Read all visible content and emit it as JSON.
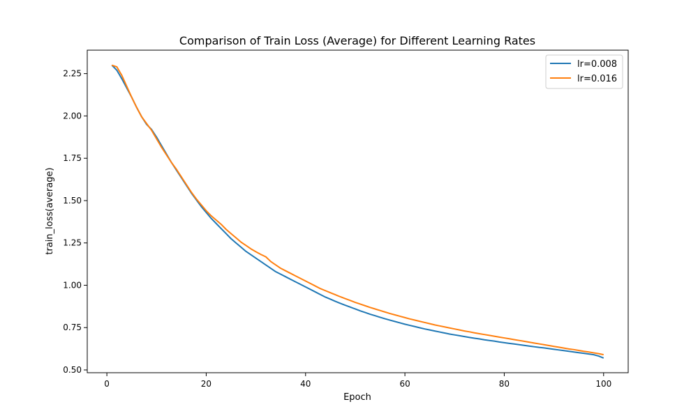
{
  "chart_data": {
    "type": "line",
    "title": "Comparison of Train Loss (Average) for Different Learning Rates",
    "xlabel": "Epoch",
    "ylabel": "train_loss(average)",
    "xlim": [
      -3.95,
      104.95
    ],
    "ylim": [
      0.4835,
      2.3885
    ],
    "xticks": [
      0,
      20,
      40,
      60,
      80,
      100
    ],
    "yticks": [
      0.5,
      0.75,
      1.0,
      1.25,
      1.5,
      1.75,
      2.0,
      2.25
    ],
    "xtick_labels": [
      "0",
      "20",
      "40",
      "60",
      "80",
      "100"
    ],
    "ytick_labels": [
      "0.50",
      "0.75",
      "1.00",
      "1.25",
      "1.50",
      "1.75",
      "2.00",
      "2.25"
    ],
    "grid": false,
    "legend_position": "top-right",
    "x": [
      1,
      2,
      3,
      4,
      5,
      6,
      7,
      8,
      9,
      10,
      11,
      12,
      13,
      14,
      15,
      16,
      17,
      18,
      19,
      20,
      21,
      22,
      23,
      24,
      25,
      26,
      27,
      28,
      29,
      30,
      31,
      32,
      33,
      34,
      35,
      36,
      37,
      38,
      39,
      40,
      41,
      42,
      43,
      44,
      45,
      46,
      47,
      48,
      49,
      50,
      51,
      52,
      53,
      54,
      55,
      56,
      57,
      58,
      59,
      60,
      61,
      62,
      63,
      64,
      65,
      66,
      67,
      68,
      69,
      70,
      71,
      72,
      73,
      74,
      75,
      76,
      77,
      78,
      79,
      80,
      81,
      82,
      83,
      84,
      85,
      86,
      87,
      88,
      89,
      90,
      91,
      92,
      93,
      94,
      95,
      96,
      97,
      98,
      99,
      100
    ],
    "series": [
      {
        "name": "lr=0.008",
        "color": "#1f77b4",
        "values": [
          2.3,
          2.27,
          2.22,
          2.165,
          2.11,
          2.05,
          1.995,
          1.95,
          1.92,
          1.875,
          1.825,
          1.775,
          1.725,
          1.68,
          1.635,
          1.59,
          1.545,
          1.505,
          1.465,
          1.43,
          1.395,
          1.365,
          1.335,
          1.305,
          1.275,
          1.25,
          1.225,
          1.2,
          1.18,
          1.16,
          1.14,
          1.12,
          1.1,
          1.08,
          1.065,
          1.05,
          1.035,
          1.02,
          1.005,
          0.99,
          0.975,
          0.96,
          0.945,
          0.93,
          0.918,
          0.905,
          0.893,
          0.882,
          0.871,
          0.86,
          0.849,
          0.839,
          0.829,
          0.82,
          0.811,
          0.802,
          0.794,
          0.786,
          0.778,
          0.77,
          0.763,
          0.756,
          0.749,
          0.742,
          0.736,
          0.73,
          0.724,
          0.718,
          0.712,
          0.707,
          0.702,
          0.697,
          0.692,
          0.687,
          0.683,
          0.678,
          0.674,
          0.67,
          0.665,
          0.661,
          0.657,
          0.653,
          0.649,
          0.645,
          0.641,
          0.637,
          0.633,
          0.63,
          0.626,
          0.622,
          0.618,
          0.614,
          0.61,
          0.606,
          0.602,
          0.598,
          0.594,
          0.59,
          0.582,
          0.57
        ]
      },
      {
        "name": "lr=0.016",
        "color": "#ff7f0e",
        "values": [
          2.3,
          2.29,
          2.24,
          2.175,
          2.11,
          2.05,
          1.995,
          1.955,
          1.915,
          1.865,
          1.815,
          1.77,
          1.725,
          1.685,
          1.64,
          1.595,
          1.55,
          1.51,
          1.475,
          1.44,
          1.41,
          1.385,
          1.36,
          1.33,
          1.305,
          1.28,
          1.255,
          1.235,
          1.215,
          1.198,
          1.182,
          1.168,
          1.14,
          1.12,
          1.1,
          1.085,
          1.07,
          1.055,
          1.04,
          1.025,
          1.01,
          0.995,
          0.98,
          0.968,
          0.956,
          0.944,
          0.932,
          0.921,
          0.91,
          0.899,
          0.889,
          0.879,
          0.869,
          0.86,
          0.851,
          0.842,
          0.833,
          0.825,
          0.817,
          0.809,
          0.801,
          0.794,
          0.787,
          0.78,
          0.773,
          0.766,
          0.76,
          0.754,
          0.748,
          0.742,
          0.736,
          0.73,
          0.725,
          0.719,
          0.714,
          0.709,
          0.704,
          0.699,
          0.694,
          0.689,
          0.684,
          0.679,
          0.674,
          0.669,
          0.664,
          0.659,
          0.654,
          0.649,
          0.644,
          0.639,
          0.634,
          0.629,
          0.624,
          0.62,
          0.615,
          0.61,
          0.606,
          0.601,
          0.596,
          0.59
        ]
      }
    ]
  }
}
